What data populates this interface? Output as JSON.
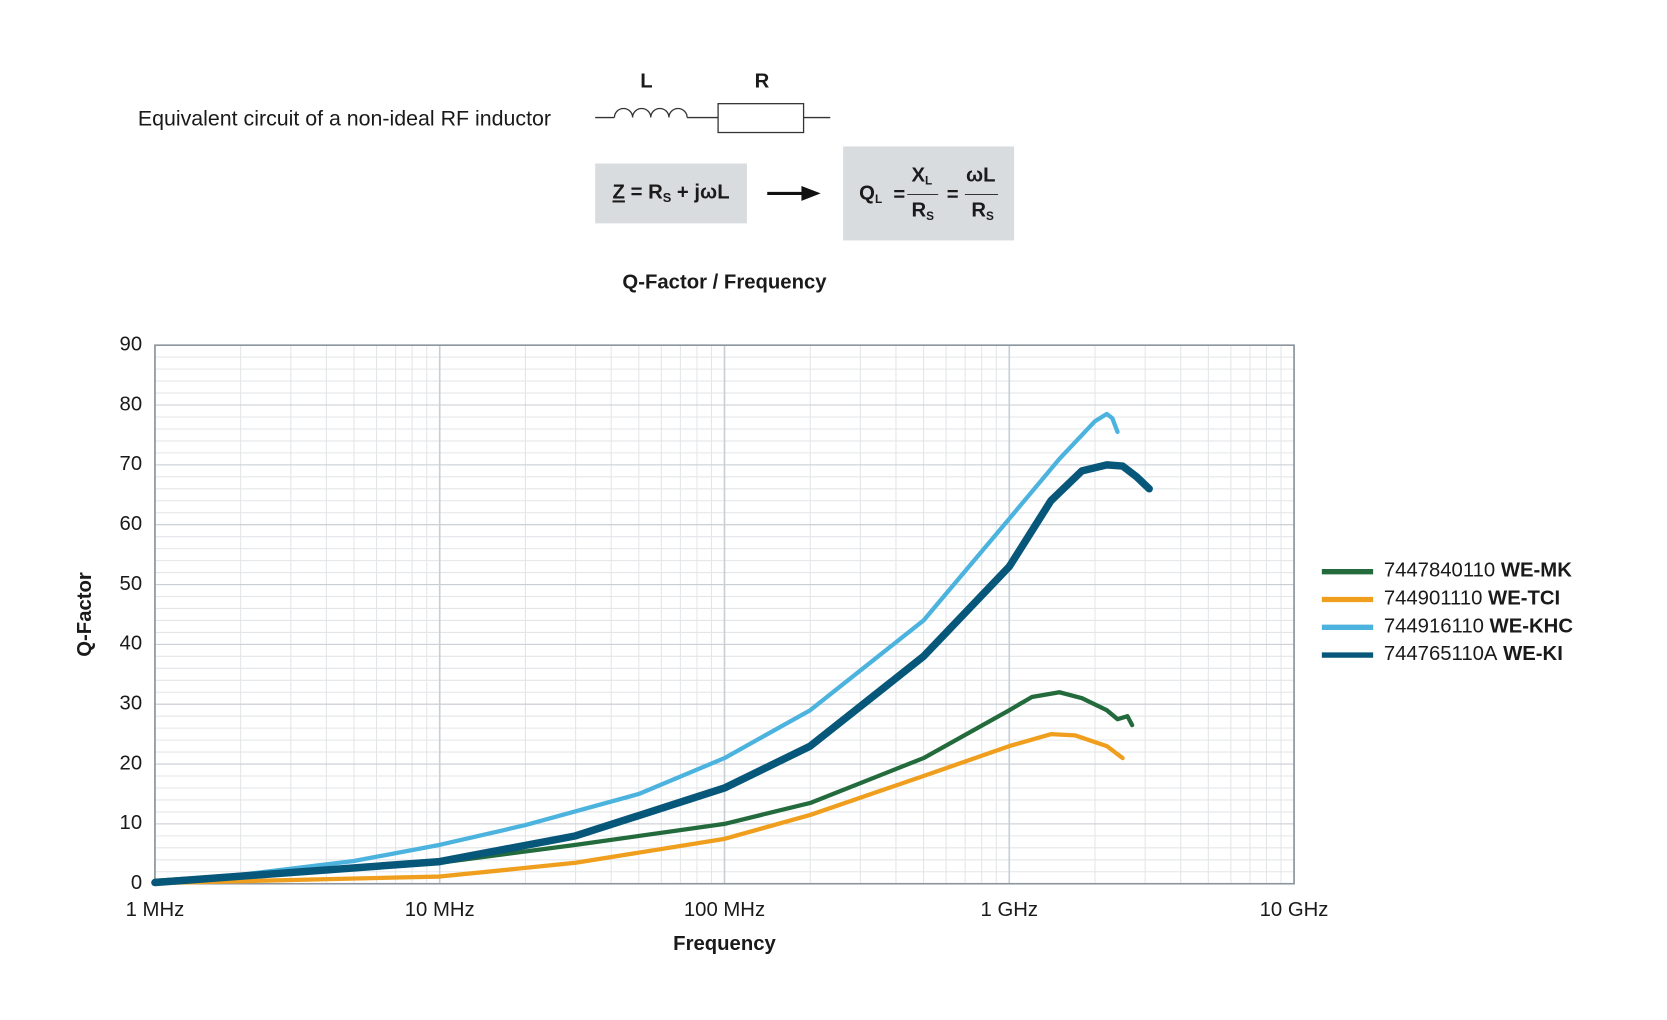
{
  "header": {
    "caption": "Equivalent circuit of a non-ideal RF inductor",
    "inductor": "L",
    "resistor": "R",
    "impedance": {
      "lhs": "Z",
      "eq": " = R",
      "sub": "S",
      "rest": " + jωL"
    },
    "q_formula": {
      "q": "Q",
      "q_sub": "L",
      "eq": "=",
      "x": "X",
      "x_sub": "L",
      "r": "R",
      "r_sub": "S",
      "eq2": "=",
      "wl": "ωL",
      "r2": "R",
      "r2_sub": "S"
    }
  },
  "chart_data": {
    "type": "line",
    "title": "Q-Factor / Frequency",
    "x_label": "Frequency",
    "y_label": "Q-Factor",
    "x_scale": "log",
    "grid": true,
    "minor_grid": true,
    "legend": "right",
    "xlim": [
      1000000,
      10000000000
    ],
    "xticks": [
      {
        "value": 1000000,
        "label": "1 MHz"
      },
      {
        "value": 10000000,
        "label": "10 MHz"
      },
      {
        "value": 100000000,
        "label": "100 MHz"
      },
      {
        "value": 1000000000,
        "label": "1 GHz"
      },
      {
        "value": 10000000000,
        "label": "10 GHz"
      }
    ],
    "ylim": [
      0,
      90
    ],
    "yticks": [
      0,
      10,
      20,
      30,
      40,
      50,
      60,
      70,
      80,
      90
    ],
    "series": [
      {
        "name": "7447840110",
        "family": "WE-MK",
        "color": "#236b3c",
        "width": 4,
        "x": [
          1000000,
          10000000,
          30000000,
          100000000,
          200000000,
          500000000,
          1000000000,
          1200000000,
          1500000000,
          1800000000,
          2200000000,
          2400000000,
          2600000000,
          2700000000
        ],
        "values": [
          0.5,
          3.5,
          6.5,
          10,
          13.5,
          21,
          29,
          31.2,
          32,
          31,
          29,
          27.5,
          28,
          26.5
        ]
      },
      {
        "name": "744901110",
        "family": "WE-TCI",
        "color": "#ef9f1d",
        "width": 4,
        "x": [
          1000000,
          10000000,
          30000000,
          100000000,
          200000000,
          500000000,
          1000000000,
          1400000000,
          1700000000,
          2200000000,
          2500000000
        ],
        "values": [
          0.1,
          1.2,
          3.5,
          7.5,
          11.5,
          18,
          23,
          25,
          24.8,
          23,
          21
        ]
      },
      {
        "name": "744916110",
        "family": "WE-KHC",
        "color": "#4cb3de",
        "width": 4,
        "x": [
          1000000,
          2000000,
          5000000,
          10000000,
          20000000,
          50000000,
          100000000,
          200000000,
          500000000,
          1000000000,
          1500000000,
          2000000000,
          2200000000,
          2300000000,
          2400000000
        ],
        "values": [
          0.3,
          1.5,
          3.8,
          6.5,
          9.8,
          15,
          21,
          29,
          44,
          61,
          71,
          77.3,
          78.5,
          77.8,
          75.5
        ]
      },
      {
        "name": "744765110A",
        "family": "WE-KI",
        "color": "#07577a",
        "width": 7,
        "x": [
          1000000,
          10000000,
          30000000,
          100000000,
          200000000,
          500000000,
          1000000000,
          1400000000,
          1800000000,
          2200000000,
          2500000000,
          2800000000,
          3100000000
        ],
        "values": [
          0.2,
          3.7,
          8,
          16,
          23,
          38,
          53,
          64,
          69,
          70,
          69.8,
          68,
          66
        ]
      }
    ]
  }
}
